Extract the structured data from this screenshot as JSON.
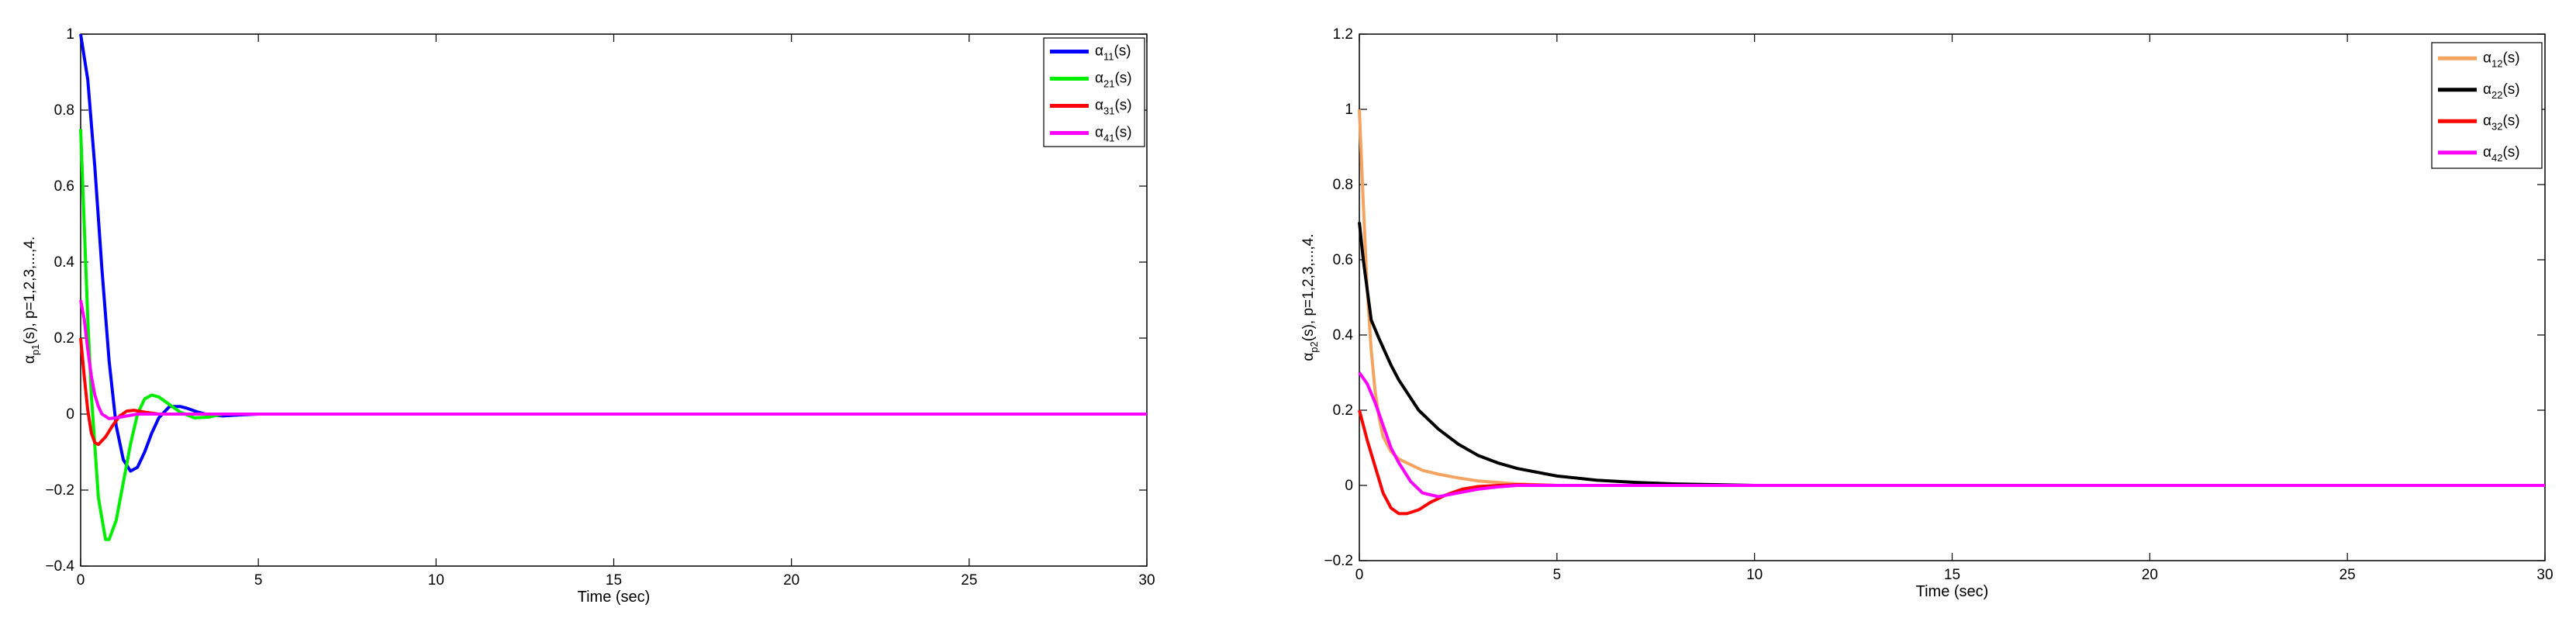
{
  "chart_data": [
    {
      "type": "line",
      "xlabel": "Time (sec)",
      "ylabel": {
        "main": "α",
        "sub": "p1",
        "rest": "(s), p=1,2,3,...,4."
      },
      "xlim": [
        0,
        30
      ],
      "ylim": [
        -0.4,
        1
      ],
      "xticks": [
        0,
        5,
        10,
        15,
        20,
        25,
        30
      ],
      "yticks": [
        -0.4,
        -0.2,
        0,
        0.2,
        0.4,
        0.6,
        0.8,
        1
      ],
      "ytick_labels": [
        "−0.4",
        "−0.2",
        "0",
        "0.2",
        "0.4",
        "0.6",
        "0.8",
        "1"
      ],
      "grid": false,
      "legend_position": "top-right",
      "series": [
        {
          "name": "α11(s)",
          "label_main": "α",
          "label_sub": "11",
          "label_rest": "(s)",
          "color": "#0000ff",
          "x": [
            0,
            0.2,
            0.4,
            0.6,
            0.8,
            1.0,
            1.2,
            1.4,
            1.6,
            1.8,
            2.0,
            2.2,
            2.5,
            2.8,
            3.0,
            3.3,
            3.6,
            4.0,
            4.5,
            5.0
          ],
          "y": [
            1.0,
            0.88,
            0.65,
            0.38,
            0.14,
            -0.03,
            -0.12,
            -0.15,
            -0.14,
            -0.1,
            -0.05,
            -0.01,
            0.02,
            0.02,
            0.015,
            0.005,
            -0.002,
            -0.005,
            -0.002,
            0
          ]
        },
        {
          "name": "α21(s)",
          "label_main": "α",
          "label_sub": "21",
          "label_rest": "(s)",
          "color": "#00ee00",
          "x": [
            0,
            0.1,
            0.2,
            0.3,
            0.5,
            0.7,
            0.8,
            1.0,
            1.2,
            1.4,
            1.6,
            1.8,
            2.0,
            2.2,
            2.5,
            2.8,
            3.2,
            3.6,
            4.0
          ],
          "y": [
            0.75,
            0.5,
            0.25,
            0.05,
            -0.22,
            -0.33,
            -0.33,
            -0.28,
            -0.18,
            -0.08,
            0.0,
            0.04,
            0.05,
            0.045,
            0.025,
            0.005,
            -0.01,
            -0.008,
            0
          ]
        },
        {
          "name": "α31(s)",
          "label_main": "α",
          "label_sub": "31",
          "label_rest": "(s)",
          "color": "#ff0000",
          "x": [
            0,
            0.1,
            0.2,
            0.3,
            0.4,
            0.5,
            0.7,
            0.9,
            1.1,
            1.3,
            1.5,
            1.8,
            2.2,
            3.0
          ],
          "y": [
            0.2,
            0.1,
            0.01,
            -0.05,
            -0.075,
            -0.08,
            -0.06,
            -0.03,
            -0.005,
            0.008,
            0.01,
            0.005,
            0,
            0
          ]
        },
        {
          "name": "α41(s)",
          "label_main": "α",
          "label_sub": "41",
          "label_rest": "(s)",
          "color": "#ff00ff",
          "x": [
            0,
            0.1,
            0.2,
            0.3,
            0.4,
            0.5,
            0.6,
            0.8,
            1.0,
            1.3,
            1.6,
            2.0,
            2.5,
            30
          ],
          "y": [
            0.3,
            0.25,
            0.17,
            0.1,
            0.05,
            0.02,
            0.0,
            -0.012,
            -0.01,
            -0.005,
            0,
            0,
            0,
            0
          ]
        }
      ]
    },
    {
      "type": "line",
      "xlabel": "Time (sec)",
      "ylabel": {
        "main": "α",
        "sub": "p2",
        "rest": "(s), p=1,2,3,...,4."
      },
      "xlim": [
        0,
        30
      ],
      "ylim": [
        -0.2,
        1.2
      ],
      "xticks": [
        0,
        5,
        10,
        15,
        20,
        25,
        30
      ],
      "yticks": [
        -0.2,
        0,
        0.2,
        0.4,
        0.6,
        0.8,
        1,
        1.2
      ],
      "ytick_labels": [
        "−0.2",
        "0",
        "0.2",
        "0.4",
        "0.6",
        "0.8",
        "1",
        "1.2"
      ],
      "grid": false,
      "legend_position": "top-right",
      "series": [
        {
          "name": "α12(s)",
          "label_main": "α",
          "label_sub": "12",
          "label_rest": "(s)",
          "color": "#f4a460",
          "x": [
            0,
            0.1,
            0.2,
            0.3,
            0.4,
            0.5,
            0.6,
            0.8,
            1.0,
            1.3,
            1.6,
            2.0,
            2.5,
            3.0,
            3.5,
            4.0,
            5.0
          ],
          "y": [
            1.0,
            0.75,
            0.52,
            0.36,
            0.25,
            0.18,
            0.13,
            0.09,
            0.07,
            0.055,
            0.04,
            0.03,
            0.02,
            0.012,
            0.008,
            0.004,
            0
          ]
        },
        {
          "name": "α22(s)",
          "label_main": "α",
          "label_sub": "22",
          "label_rest": "(s)",
          "color": "#000000",
          "x": [
            0,
            0.1,
            0.3,
            0.5,
            0.8,
            1.0,
            1.5,
            2.0,
            2.5,
            3.0,
            3.5,
            4.0,
            5.0,
            6.0,
            7.0,
            8.0,
            9.0,
            10.0
          ],
          "y": [
            0.7,
            0.6,
            0.44,
            0.39,
            0.32,
            0.28,
            0.2,
            0.15,
            0.11,
            0.08,
            0.06,
            0.045,
            0.025,
            0.014,
            0.008,
            0.004,
            0.002,
            0
          ]
        },
        {
          "name": "α32(s)",
          "label_main": "α",
          "label_sub": "32",
          "label_rest": "(s)",
          "color": "#ff0000",
          "x": [
            0,
            0.2,
            0.4,
            0.6,
            0.8,
            1.0,
            1.2,
            1.5,
            1.8,
            2.2,
            2.6,
            3.0,
            3.5,
            4.0,
            5.0
          ],
          "y": [
            0.2,
            0.12,
            0.05,
            -0.02,
            -0.06,
            -0.075,
            -0.075,
            -0.065,
            -0.045,
            -0.025,
            -0.01,
            -0.003,
            0,
            0.002,
            0
          ]
        },
        {
          "name": "α42(s)",
          "label_main": "α",
          "label_sub": "42",
          "label_rest": "(s)",
          "color": "#ff00ff",
          "x": [
            0,
            0.2,
            0.4,
            0.6,
            0.8,
            1.0,
            1.3,
            1.6,
            2.0,
            2.5,
            3.0,
            3.5,
            4.0,
            30
          ],
          "y": [
            0.3,
            0.27,
            0.22,
            0.16,
            0.1,
            0.06,
            0.01,
            -0.02,
            -0.03,
            -0.02,
            -0.01,
            -0.004,
            0,
            0
          ]
        }
      ]
    }
  ]
}
